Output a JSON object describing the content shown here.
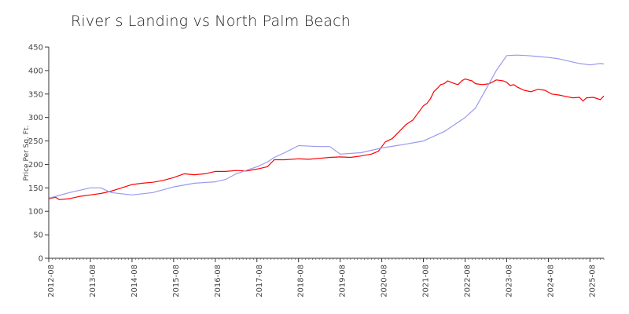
{
  "chart_data": {
    "type": "line",
    "title": "River s Landing vs North Palm Beach",
    "xlabel": "",
    "ylabel": "Price Per Sq. Ft.",
    "ylim": [
      0,
      450
    ],
    "xlim": [
      "2012-08",
      "2025-12"
    ],
    "yticks": [
      0,
      50,
      100,
      150,
      200,
      250,
      300,
      350,
      400,
      450
    ],
    "xticks": [
      "2012-08",
      "2013-08",
      "2014-08",
      "2015-08",
      "2016-08",
      "2017-08",
      "2018-08",
      "2019-08",
      "2020-08",
      "2021-08",
      "2022-08",
      "2023-08",
      "2024-08",
      "2025-08"
    ],
    "grid": false,
    "legend": "none",
    "series": [
      {
        "color": "#ff0000",
        "points": [
          [
            "2012-08",
            127
          ],
          [
            "2012-10",
            130
          ],
          [
            "2012-11",
            125
          ],
          [
            "2013-02",
            127
          ],
          [
            "2013-05",
            132
          ],
          [
            "2013-08",
            135
          ],
          [
            "2013-11",
            138
          ],
          [
            "2014-02",
            143
          ],
          [
            "2014-05",
            150
          ],
          [
            "2014-08",
            157
          ],
          [
            "2014-11",
            160
          ],
          [
            "2015-02",
            162
          ],
          [
            "2015-05",
            166
          ],
          [
            "2015-08",
            172
          ],
          [
            "2015-11",
            180
          ],
          [
            "2016-02",
            178
          ],
          [
            "2016-05",
            180
          ],
          [
            "2016-08",
            185
          ],
          [
            "2016-11",
            185
          ],
          [
            "2017-02",
            187
          ],
          [
            "2017-05",
            186
          ],
          [
            "2017-08",
            190
          ],
          [
            "2017-11",
            195
          ],
          [
            "2018-01",
            210
          ],
          [
            "2018-04",
            210
          ],
          [
            "2018-08",
            212
          ],
          [
            "2018-11",
            211
          ],
          [
            "2019-02",
            213
          ],
          [
            "2019-05",
            215
          ],
          [
            "2019-08",
            216
          ],
          [
            "2019-11",
            215
          ],
          [
            "2020-02",
            218
          ],
          [
            "2020-05",
            222
          ],
          [
            "2020-07",
            228
          ],
          [
            "2020-09",
            248
          ],
          [
            "2020-11",
            255
          ],
          [
            "2021-01",
            270
          ],
          [
            "2021-03",
            285
          ],
          [
            "2021-05",
            295
          ],
          [
            "2021-07",
            315
          ],
          [
            "2021-08",
            325
          ],
          [
            "2021-09",
            330
          ],
          [
            "2021-10",
            340
          ],
          [
            "2021-11",
            355
          ],
          [
            "2021-12",
            362
          ],
          [
            "2022-01",
            370
          ],
          [
            "2022-02",
            372
          ],
          [
            "2022-03",
            378
          ],
          [
            "2022-04",
            375
          ],
          [
            "2022-05",
            372
          ],
          [
            "2022-06",
            370
          ],
          [
            "2022-07",
            378
          ],
          [
            "2022-08",
            382
          ],
          [
            "2022-09",
            380
          ],
          [
            "2022-10",
            378
          ],
          [
            "2022-11",
            372
          ],
          [
            "2023-01",
            370
          ],
          [
            "2023-03",
            372
          ],
          [
            "2023-05",
            380
          ],
          [
            "2023-07",
            378
          ],
          [
            "2023-08",
            375
          ],
          [
            "2023-09",
            368
          ],
          [
            "2023-10",
            370
          ],
          [
            "2023-11",
            365
          ],
          [
            "2024-01",
            358
          ],
          [
            "2024-03",
            355
          ],
          [
            "2024-05",
            360
          ],
          [
            "2024-07",
            358
          ],
          [
            "2024-09",
            350
          ],
          [
            "2024-11",
            348
          ],
          [
            "2025-01",
            345
          ],
          [
            "2025-03",
            342
          ],
          [
            "2025-05",
            343
          ],
          [
            "2025-06",
            335
          ],
          [
            "2025-07",
            342
          ],
          [
            "2025-09",
            343
          ],
          [
            "2025-11",
            338
          ],
          [
            "2025-12",
            346
          ]
        ]
      },
      {
        "color": "#9999ee",
        "points": [
          [
            "2012-08",
            128
          ],
          [
            "2013-02",
            140
          ],
          [
            "2013-08",
            150
          ],
          [
            "2013-11",
            150
          ],
          [
            "2014-02",
            140
          ],
          [
            "2014-08",
            135
          ],
          [
            "2015-02",
            140
          ],
          [
            "2015-08",
            152
          ],
          [
            "2016-02",
            160
          ],
          [
            "2016-08",
            163
          ],
          [
            "2016-11",
            168
          ],
          [
            "2017-02",
            180
          ],
          [
            "2017-08",
            195
          ],
          [
            "2017-11",
            205
          ],
          [
            "2018-01",
            215
          ],
          [
            "2018-04",
            225
          ],
          [
            "2018-08",
            240
          ],
          [
            "2019-02",
            238
          ],
          [
            "2019-05",
            238
          ],
          [
            "2019-08",
            222
          ],
          [
            "2020-02",
            225
          ],
          [
            "2020-08",
            235
          ],
          [
            "2021-02",
            242
          ],
          [
            "2021-08",
            250
          ],
          [
            "2022-02",
            270
          ],
          [
            "2022-08",
            300
          ],
          [
            "2022-11",
            320
          ],
          [
            "2023-02",
            360
          ],
          [
            "2023-05",
            400
          ],
          [
            "2023-08",
            432
          ],
          [
            "2023-11",
            433
          ],
          [
            "2024-02",
            432
          ],
          [
            "2024-05",
            430
          ],
          [
            "2024-08",
            428
          ],
          [
            "2024-11",
            425
          ],
          [
            "2025-02",
            420
          ],
          [
            "2025-05",
            415
          ],
          [
            "2025-08",
            412
          ],
          [
            "2025-11",
            415
          ],
          [
            "2025-12",
            414
          ]
        ]
      }
    ]
  }
}
